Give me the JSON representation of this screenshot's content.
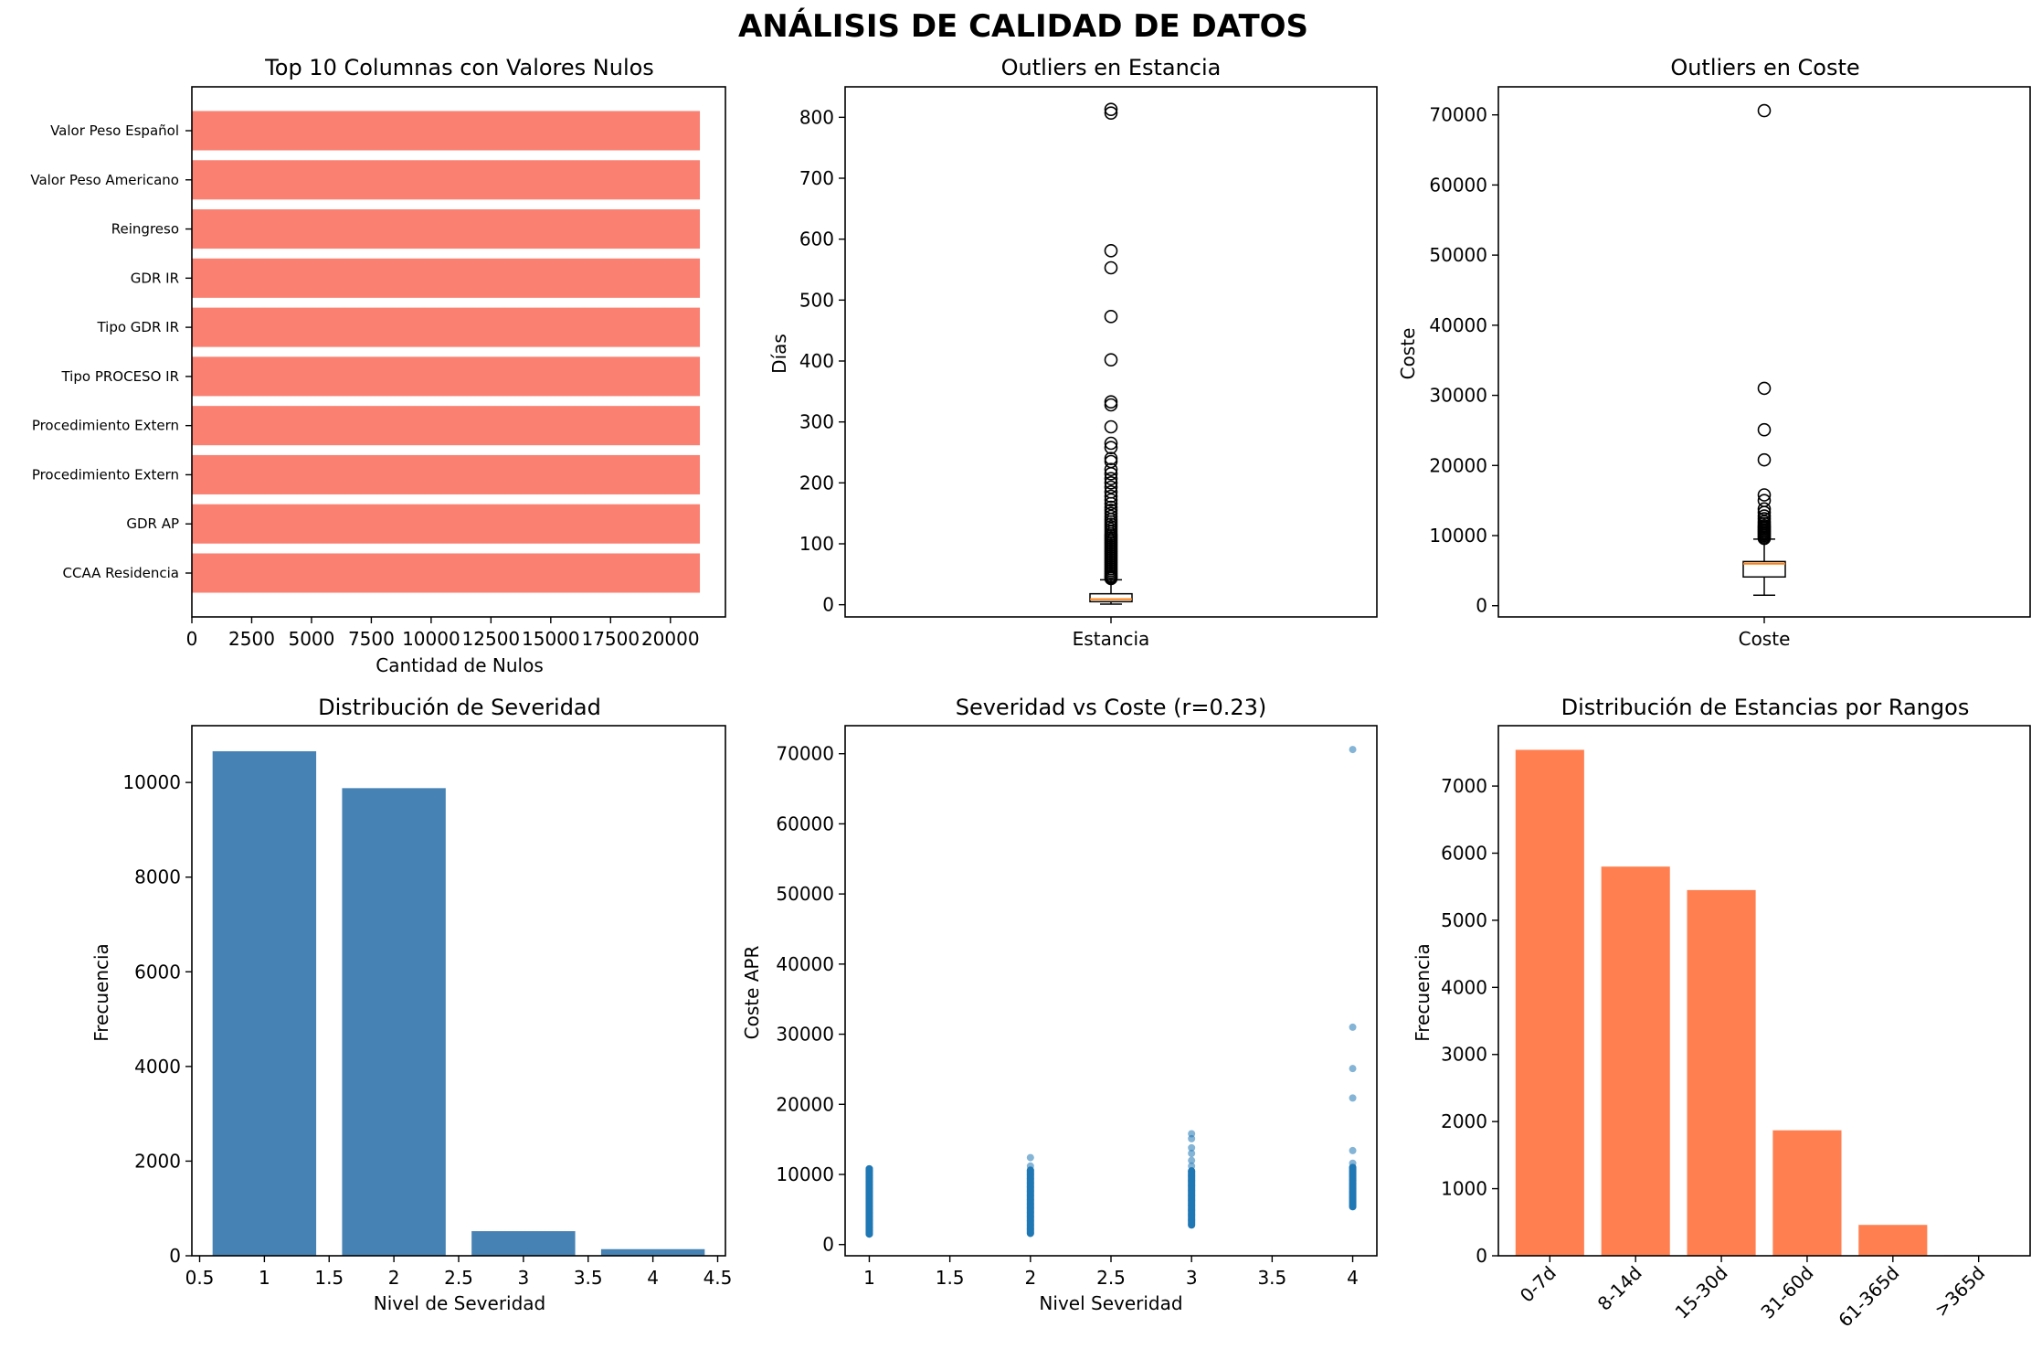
{
  "suptitle": "ANÁLISIS DE CALIDAD DE DATOS",
  "chart_data": [
    {
      "type": "bar",
      "orientation": "horizontal",
      "title": "Top 10 Columnas con Valores Nulos",
      "xlabel": "Cantidad de Nulos",
      "ylabel": "",
      "categories": [
        "Valor Peso Español",
        "Valor Peso Americano",
        "Reingreso",
        "GDR IR",
        "Tipo GDR IR",
        "Tipo PROCESO IR",
        "Procedimiento Extern",
        "Procedimiento Extern",
        "GDR AP",
        "CCAA Residencia"
      ],
      "values": [
        21233,
        21233,
        21233,
        21233,
        21233,
        21233,
        21233,
        21233,
        21233,
        21233
      ],
      "xlim": [
        0,
        22300
      ],
      "xticks": [
        0,
        2500,
        5000,
        7500,
        10000,
        12500,
        15000,
        17500,
        20000
      ],
      "color": "#fa8072"
    },
    {
      "type": "box",
      "title": "Outliers en Estancia",
      "xlabel": "",
      "ylabel": "Días",
      "category": "Estancia",
      "ylim": [
        -20,
        850
      ],
      "yticks": [
        0,
        100,
        200,
        300,
        400,
        500,
        600,
        700,
        800
      ],
      "whisker_low": 1,
      "q1": 5,
      "median": 9,
      "q3": 18,
      "whisker_high": 41,
      "outliers": [
        43,
        45,
        47,
        50,
        53,
        56,
        59,
        62,
        65,
        68,
        71,
        74,
        77,
        80,
        83,
        86,
        89,
        92,
        95,
        98,
        101,
        104,
        107,
        110,
        113,
        116,
        120,
        124,
        128,
        132,
        136,
        140,
        145,
        150,
        155,
        160,
        166,
        172,
        178,
        185,
        193,
        200,
        207,
        215,
        222,
        235,
        240,
        258,
        265,
        292,
        328,
        333,
        402,
        473,
        553,
        581,
        807,
        813
      ]
    },
    {
      "type": "box",
      "title": "Outliers en Coste",
      "xlabel": "",
      "ylabel": "Coste",
      "category": "Coste",
      "ylim": [
        -1600,
        74000
      ],
      "yticks": [
        0,
        10000,
        20000,
        30000,
        40000,
        50000,
        60000,
        70000
      ],
      "whisker_low": 1500,
      "q1": 4100,
      "median": 6000,
      "q3": 6300,
      "whisker_high": 9500,
      "outliers": [
        9600,
        9800,
        10000,
        10200,
        10400,
        10600,
        10800,
        11000,
        11200,
        11400,
        11700,
        12000,
        12400,
        12800,
        13300,
        13800,
        15000,
        15800,
        20800,
        25100,
        31000,
        70600
      ]
    },
    {
      "type": "bar",
      "title": "Distribución de Severidad",
      "xlabel": "Nivel de Severidad",
      "ylabel": "Frecuencia",
      "x": [
        1.0,
        2.0,
        3.0,
        4.0
      ],
      "values": [
        10660,
        9880,
        520,
        140
      ],
      "xlim": [
        0.44,
        4.56
      ],
      "ylim": [
        0,
        11200
      ],
      "xticks": [
        0.5,
        1.0,
        1.5,
        2.0,
        2.5,
        3.0,
        3.5,
        4.0,
        4.5
      ],
      "yticks": [
        0,
        2000,
        4000,
        6000,
        8000,
        10000
      ],
      "color": "#4682b4"
    },
    {
      "type": "scatter",
      "title": "Severidad vs Coste (r=0.23)",
      "xlabel": "Nivel Severidad",
      "ylabel": "Coste APR",
      "xlim": [
        0.85,
        4.15
      ],
      "ylim": [
        -1600,
        74000
      ],
      "xticks": [
        1.0,
        1.5,
        2.0,
        2.5,
        3.0,
        3.5,
        4.0
      ],
      "yticks": [
        0,
        10000,
        20000,
        30000,
        40000,
        50000,
        60000,
        70000
      ],
      "series": [
        {
          "x": 1.0,
          "y": [
            1500,
            2000,
            2500,
            3000,
            3500,
            4000,
            4500,
            5000,
            5500,
            6000,
            6500,
            7000,
            7500,
            8000,
            8500,
            9000,
            9500,
            10000,
            10400,
            10800
          ]
        },
        {
          "x": 2.0,
          "y": [
            1600,
            2200,
            2800,
            3400,
            4000,
            4600,
            5200,
            5800,
            6400,
            7000,
            7600,
            8200,
            8800,
            9400,
            10000,
            10600,
            11200,
            12400
          ]
        },
        {
          "x": 3.0,
          "y": [
            2800,
            3500,
            4200,
            4900,
            5600,
            6300,
            7000,
            7700,
            8400,
            9100,
            9800,
            10500,
            11200,
            12000,
            13000,
            13800,
            15100,
            15800
          ]
        },
        {
          "x": 4.0,
          "y": [
            5400,
            6700,
            7400,
            8000,
            8600,
            9200,
            9800,
            10400,
            11000,
            11600,
            13400,
            20900,
            25100,
            31000,
            70600
          ]
        }
      ],
      "color": "#1f77b4"
    },
    {
      "type": "bar",
      "title": "Distribución de Estancias por Rangos",
      "xlabel": "",
      "ylabel": "Frecuencia",
      "categories": [
        "0-7d",
        "8-14d",
        "15-30d",
        "31-60d",
        "61-365d",
        ">365d"
      ],
      "values": [
        7540,
        5800,
        5450,
        1870,
        460,
        8
      ],
      "ylim": [
        0,
        7900
      ],
      "yticks": [
        0,
        1000,
        2000,
        3000,
        4000,
        5000,
        6000,
        7000
      ],
      "color": "#ff7f50"
    }
  ]
}
